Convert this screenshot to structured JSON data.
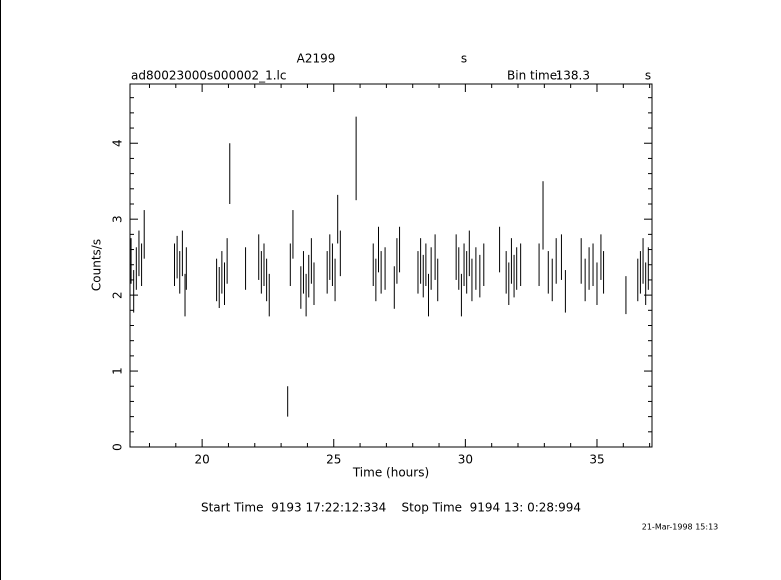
{
  "chart_data": {
    "type": "errorbar",
    "title": "A2199",
    "title_unit": "s",
    "subtitle": "ad80023000s000002_1.lc",
    "bin_time_label": "Bin time:",
    "bin_time": 138.3,
    "bin_time_unit": "s",
    "xlabel": "Time (hours)",
    "ylabel": "Counts/s",
    "footer": "Start Time  9193 17:22:12:334    Stop Time  9194 13: 0:28:994",
    "date": "21-Mar-1998 15:13",
    "color": "#000000",
    "xlim": [
      17.26,
      37.09
    ],
    "ylim": [
      0,
      4.78
    ],
    "xticks": [
      20,
      25,
      30,
      35
    ],
    "yticks": [
      0,
      1,
      2,
      3,
      4
    ],
    "xminorticks": [
      18,
      19,
      21,
      22,
      23,
      24,
      26,
      27,
      28,
      29,
      31,
      32,
      33,
      34,
      36,
      37
    ],
    "yminorticks": [
      0.2,
      0.4,
      0.6,
      0.8,
      1.2,
      1.4,
      1.6,
      1.8,
      2.2,
      2.4,
      2.6,
      2.8,
      3.2,
      3.4,
      3.6,
      3.8,
      4.2,
      4.4,
      4.6
    ],
    "x": [
      17.3,
      17.4,
      17.5,
      17.6,
      17.7,
      17.8,
      18.95,
      19.05,
      19.15,
      19.25,
      19.35,
      19.4,
      20.55,
      20.65,
      20.75,
      20.85,
      20.95,
      21.05,
      21.65,
      22.15,
      22.25,
      22.35,
      22.45,
      22.55,
      23.25,
      23.35,
      23.45,
      23.75,
      23.85,
      23.95,
      24.05,
      24.15,
      24.25,
      24.75,
      24.85,
      24.95,
      25.05,
      25.15,
      25.25,
      25.85,
      26.5,
      26.6,
      26.7,
      26.8,
      26.95,
      27.3,
      27.4,
      27.5,
      28.2,
      28.3,
      28.4,
      28.5,
      28.6,
      28.7,
      28.85,
      28.95,
      29.65,
      29.75,
      29.85,
      29.95,
      30.05,
      30.15,
      30.25,
      30.4,
      30.55,
      30.7,
      31.3,
      31.55,
      31.65,
      31.75,
      31.85,
      31.95,
      32.1,
      32.8,
      32.95,
      33.15,
      33.3,
      33.45,
      33.65,
      33.8,
      34.4,
      34.55,
      34.7,
      34.85,
      35.0,
      35.15,
      35.25,
      36.1,
      36.55,
      36.65,
      36.75,
      36.85,
      36.95
    ],
    "values": [
      2.45,
      2.05,
      2.35,
      2.55,
      2.4,
      2.8,
      2.4,
      2.5,
      2.3,
      2.55,
      2.0,
      2.35,
      2.2,
      2.1,
      2.3,
      2.15,
      2.45,
      3.6,
      2.35,
      2.5,
      2.3,
      2.4,
      2.2,
      2.0,
      0.6,
      2.4,
      2.8,
      2.1,
      2.3,
      2.0,
      2.25,
      2.45,
      2.15,
      2.3,
      2.5,
      2.4,
      2.2,
      3.0,
      2.55,
      3.8,
      2.4,
      2.2,
      2.6,
      2.3,
      2.35,
      2.1,
      2.45,
      2.6,
      2.3,
      2.45,
      2.25,
      2.4,
      2.0,
      2.35,
      2.5,
      2.2,
      2.5,
      2.35,
      2.0,
      2.4,
      2.3,
      2.55,
      2.2,
      2.35,
      2.25,
      2.4,
      2.6,
      2.3,
      2.15,
      2.45,
      2.25,
      2.35,
      2.4,
      2.4,
      3.05,
      2.3,
      2.2,
      2.45,
      2.5,
      2.05,
      2.45,
      2.2,
      2.35,
      2.4,
      2.15,
      2.5,
      2.3,
      2.0,
      2.2,
      2.3,
      2.45,
      2.15,
      2.35
    ],
    "errors": [
      0.3,
      0.28,
      0.28,
      0.3,
      0.28,
      0.32,
      0.28,
      0.28,
      0.28,
      0.3,
      0.28,
      0.28,
      0.28,
      0.27,
      0.28,
      0.28,
      0.3,
      0.4,
      0.28,
      0.3,
      0.28,
      0.28,
      0.28,
      0.28,
      0.2,
      0.28,
      0.32,
      0.28,
      0.28,
      0.28,
      0.28,
      0.3,
      0.28,
      0.28,
      0.3,
      0.28,
      0.28,
      0.32,
      0.3,
      0.55,
      0.28,
      0.28,
      0.3,
      0.28,
      0.28,
      0.28,
      0.3,
      0.3,
      0.28,
      0.3,
      0.28,
      0.28,
      0.28,
      0.28,
      0.3,
      0.28,
      0.3,
      0.28,
      0.28,
      0.28,
      0.28,
      0.3,
      0.28,
      0.28,
      0.28,
      0.28,
      0.3,
      0.28,
      0.28,
      0.3,
      0.28,
      0.28,
      0.28,
      0.28,
      0.45,
      0.28,
      0.28,
      0.3,
      0.3,
      0.28,
      0.3,
      0.28,
      0.28,
      0.28,
      0.28,
      0.3,
      0.28,
      0.25,
      0.28,
      0.28,
      0.3,
      0.28,
      0.28
    ]
  }
}
